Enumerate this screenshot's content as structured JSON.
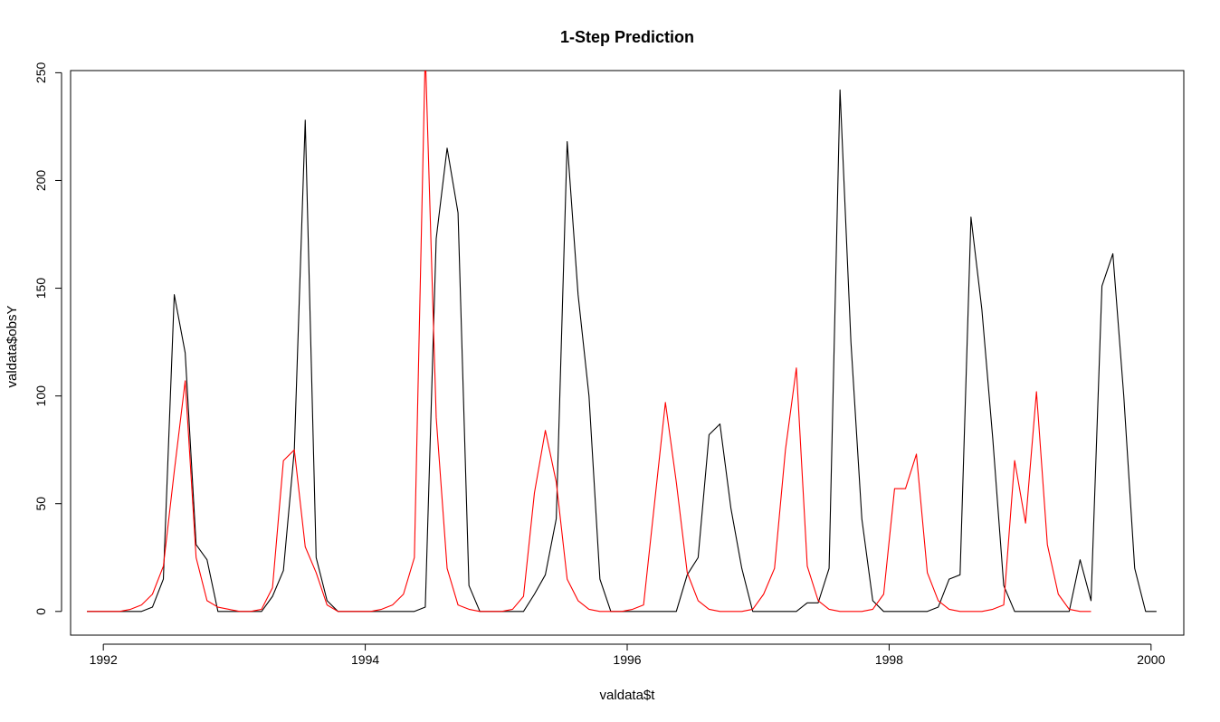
{
  "chart_data": {
    "type": "line",
    "title": "1-Step Prediction",
    "xlabel": "valdata$t",
    "ylabel": "valdata$obsY",
    "xlim": [
      1991.75,
      2000.25
    ],
    "ylim": [
      -11,
      251
    ],
    "x_ticks": [
      1992,
      1994,
      1996,
      1998,
      2000
    ],
    "x_tick_labels": [
      "1992",
      "1994",
      "1996",
      "1998",
      "2000"
    ],
    "y_ticks": [
      0,
      50,
      100,
      150,
      200,
      250
    ],
    "y_tick_labels": [
      "0",
      "50",
      "100",
      "150",
      "200",
      "250"
    ],
    "grid": false,
    "x_start": 1991.875,
    "x_step": 0.08333333,
    "series": [
      {
        "color": "#000000",
        "values": [
          0,
          0,
          0,
          0,
          0,
          0,
          2,
          15,
          147,
          120,
          31,
          24,
          0,
          0,
          0,
          0,
          0,
          7,
          19,
          75,
          228,
          25,
          5,
          0,
          0,
          0,
          0,
          0,
          0,
          0,
          0,
          2,
          173,
          215,
          185,
          12,
          0,
          0,
          0,
          0,
          0,
          8,
          17,
          43,
          218,
          147,
          100,
          15,
          0,
          0,
          0,
          0,
          0,
          0,
          0,
          17,
          25,
          82,
          87,
          48,
          20,
          0,
          0,
          0,
          0,
          0,
          4,
          4,
          20,
          242,
          125,
          43,
          5,
          0,
          0,
          0,
          0,
          0,
          2,
          15,
          17,
          183,
          140,
          80,
          12,
          0,
          0,
          0,
          0,
          0,
          0,
          24,
          5,
          151,
          166,
          100,
          20,
          0,
          0
        ]
      },
      {
        "color": "#ff0000",
        "values": [
          0,
          0,
          0,
          0,
          1,
          3,
          8,
          21,
          65,
          107,
          25,
          5,
          2,
          1,
          0,
          0,
          1,
          11,
          70,
          75,
          30,
          18,
          3,
          0,
          0,
          0,
          0,
          1,
          3,
          8,
          25,
          260,
          90,
          20,
          3,
          1,
          0,
          0,
          0,
          1,
          7,
          55,
          84,
          60,
          15,
          5,
          1,
          0,
          0,
          0,
          1,
          3,
          50,
          97,
          60,
          18,
          5,
          1,
          0,
          0,
          0,
          1,
          8,
          20,
          75,
          113,
          21,
          5,
          1,
          0,
          0,
          0,
          1,
          8,
          57,
          57,
          73,
          18,
          5,
          1,
          0,
          0,
          0,
          1,
          3,
          70,
          41,
          102,
          31,
          8,
          1,
          0,
          0
        ]
      }
    ]
  }
}
